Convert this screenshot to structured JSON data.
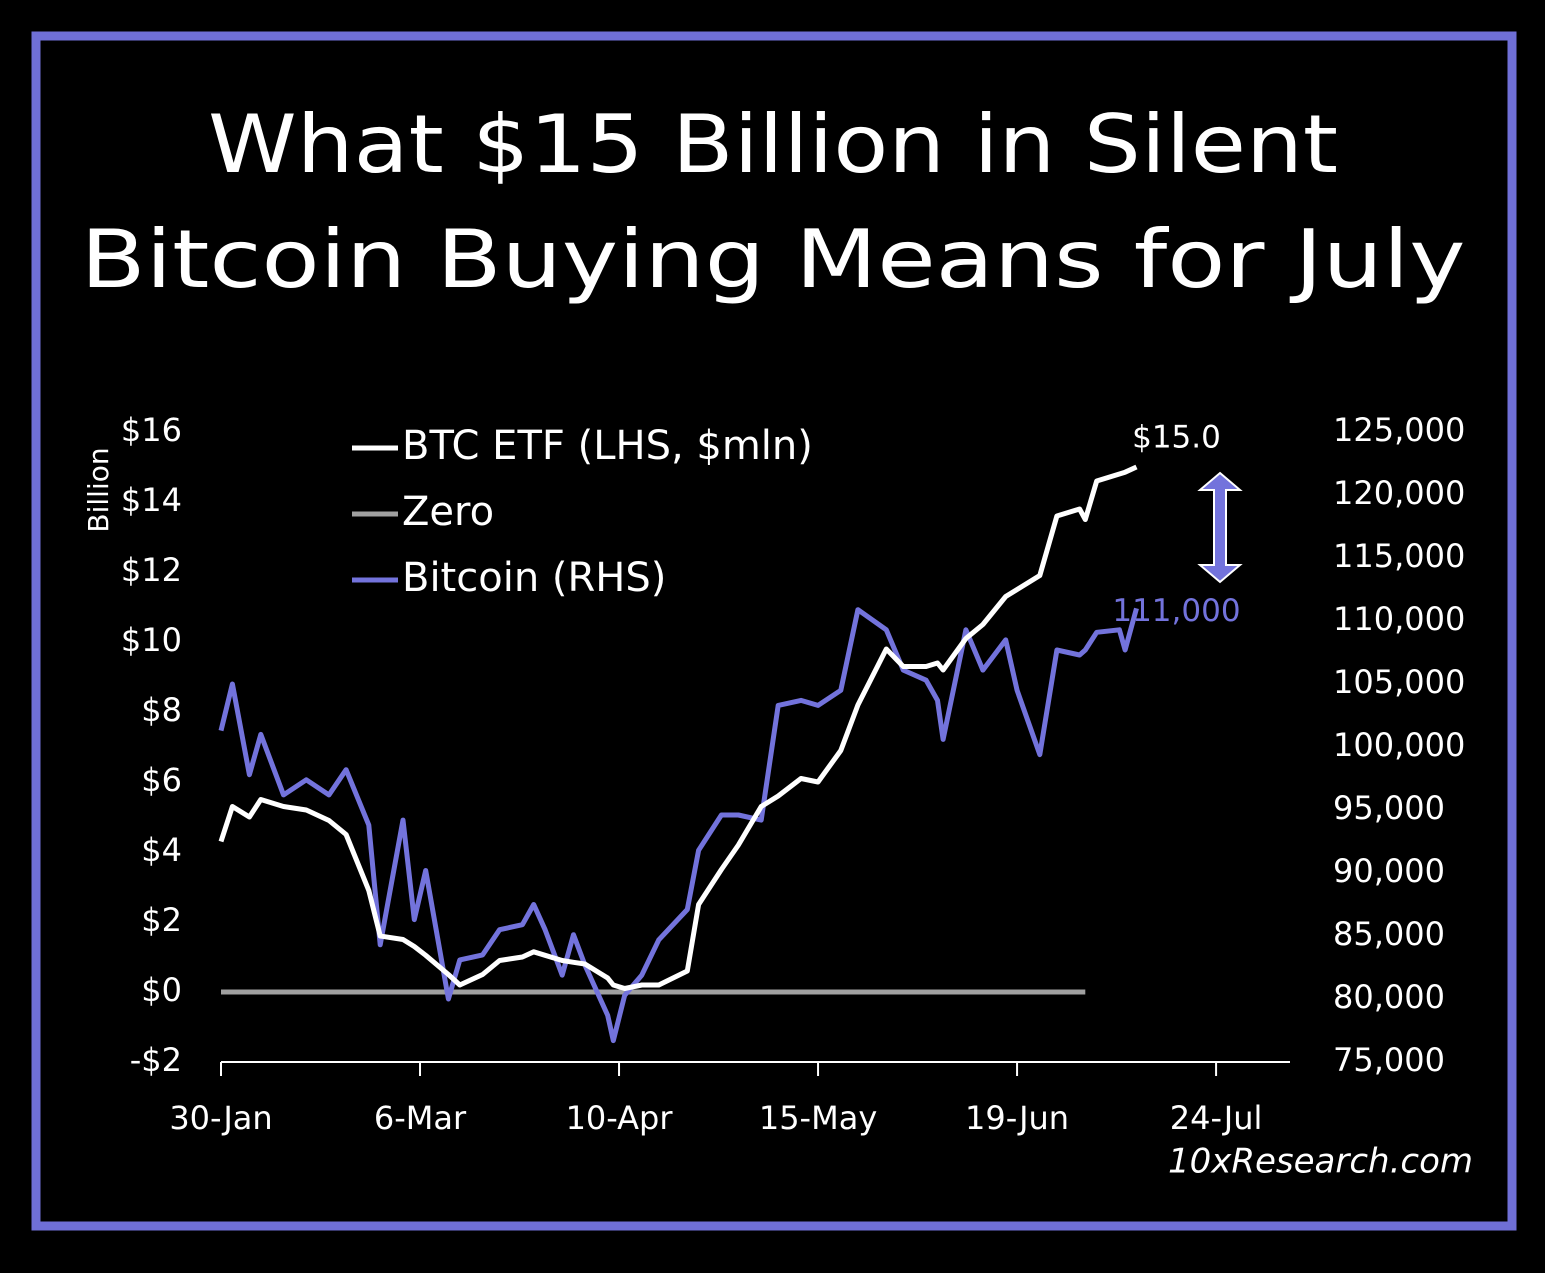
{
  "chart_data": {
    "type": "line",
    "title": [
      "What $15 Billion in Silent",
      "Bitcoin Buying Means for July"
    ],
    "ylabel": "Billion",
    "source": "10xResearch.com",
    "x": [
      "30-Jan",
      "1-Feb",
      "4-Feb",
      "6-Feb",
      "10-Feb",
      "14-Feb",
      "18-Feb",
      "21-Feb",
      "25-Feb",
      "27-Feb",
      "3-Mar",
      "5-Mar",
      "7-Mar",
      "11-Mar",
      "13-Mar",
      "17-Mar",
      "20-Mar",
      "24-Mar",
      "26-Mar",
      "28-Mar",
      "31-Mar",
      "2-Apr",
      "4-Apr",
      "8-Apr",
      "9-Apr",
      "11-Apr",
      "14-Apr",
      "17-Apr",
      "22-Apr",
      "24-Apr",
      "28-Apr",
      "1-May",
      "5-May",
      "8-May",
      "12-May",
      "15-May",
      "19-May",
      "22-May",
      "27-May",
      "30-May",
      "3-Jun",
      "5-Jun",
      "6-Jun",
      "10-Jun",
      "13-Jun",
      "17-Jun",
      "19-Jun",
      "23-Jun",
      "26-Jun",
      "30-Jun",
      "1-Jul",
      "3-Jul",
      "7-Jul",
      "8-Jul",
      "10-Jul"
    ],
    "series": [
      {
        "name": "BTC ETF (LHS, $mln)",
        "color": "#ffffff",
        "values": [
          4.3,
          5.3,
          5.0,
          5.5,
          5.3,
          5.2,
          4.9,
          4.5,
          2.9,
          1.6,
          1.5,
          1.3,
          1.05,
          0.5,
          0.2,
          0.5,
          0.9,
          1.0,
          1.15,
          1.05,
          0.9,
          0.85,
          0.8,
          0.4,
          0.2,
          0.1,
          0.2,
          0.2,
          0.6,
          2.5,
          3.5,
          4.2,
          5.3,
          5.6,
          6.1,
          6.0,
          6.9,
          8.2,
          9.8,
          9.3,
          9.3,
          9.4,
          9.2,
          10.1,
          10.5,
          11.3,
          11.5,
          11.9,
          13.6,
          13.8,
          13.5,
          14.6,
          14.8,
          14.85,
          15.0
        ]
      },
      {
        "name": "Zero",
        "color": "#a0a0a0",
        "values": [
          0,
          0,
          0,
          0,
          0,
          0,
          0,
          0,
          0,
          0,
          0,
          0,
          0,
          0,
          0,
          0,
          0,
          0,
          0,
          0,
          0,
          0,
          0,
          0,
          0,
          0,
          0,
          0,
          0,
          0,
          0,
          0,
          0,
          0,
          0,
          0,
          0,
          0,
          0,
          0,
          0,
          0,
          0,
          0,
          0,
          0,
          0,
          0,
          0,
          0,
          0,
          null,
          null,
          null,
          null
        ]
      },
      {
        "name": "Bitcoin (RHS)",
        "color": "#7373dc",
        "axis": "y2",
        "values": [
          101300,
          105000,
          97800,
          101000,
          96200,
          97400,
          96200,
          98200,
          93800,
          84300,
          94200,
          86300,
          90200,
          80000,
          83100,
          83500,
          85500,
          85900,
          87500,
          85500,
          81900,
          85100,
          82700,
          78700,
          76700,
          80300,
          81900,
          84700,
          87100,
          91800,
          94600,
          94600,
          94200,
          103300,
          103700,
          103300,
          104500,
          110900,
          109300,
          106100,
          105300,
          103700,
          100600,
          109300,
          106100,
          108500,
          104500,
          99400,
          107700,
          107300,
          107700,
          109100,
          109300,
          107700,
          111000
        ]
      }
    ],
    "annotations": [
      {
        "text": "$15.0",
        "series": 0
      },
      {
        "text": "111,000",
        "series": 2
      }
    ],
    "xlim": [
      "30-Jan",
      "6-Aug"
    ],
    "xticks": [
      "30-Jan",
      "6-Mar",
      "10-Apr",
      "15-May",
      "19-Jun",
      "24-Jul"
    ],
    "ylim": [
      -2,
      16
    ],
    "yticks": [
      {
        "value": -2,
        "label": "-$2"
      },
      {
        "value": 0,
        "label": "$0"
      },
      {
        "value": 2,
        "label": "$2"
      },
      {
        "value": 4,
        "label": "$4"
      },
      {
        "value": 6,
        "label": "$6"
      },
      {
        "value": 8,
        "label": "$8"
      },
      {
        "value": 10,
        "label": "$10"
      },
      {
        "value": 12,
        "label": "$12"
      },
      {
        "value": 14,
        "label": "$14"
      },
      {
        "value": 16,
        "label": "$16"
      }
    ],
    "y2lim": [
      75000,
      125000
    ],
    "y2ticks": [
      {
        "value": 75000,
        "label": "75,000"
      },
      {
        "value": 80000,
        "label": "80,000"
      },
      {
        "value": 85000,
        "label": "85,000"
      },
      {
        "value": 90000,
        "label": "90,000"
      },
      {
        "value": 95000,
        "label": "95,000"
      },
      {
        "value": 100000,
        "label": "100,000"
      },
      {
        "value": 105000,
        "label": "105,000"
      },
      {
        "value": 110000,
        "label": "110,000"
      },
      {
        "value": 115000,
        "label": "115,000"
      },
      {
        "value": 120000,
        "label": "120,000"
      },
      {
        "value": 125000,
        "label": "125,000"
      }
    ],
    "grid": false
  }
}
